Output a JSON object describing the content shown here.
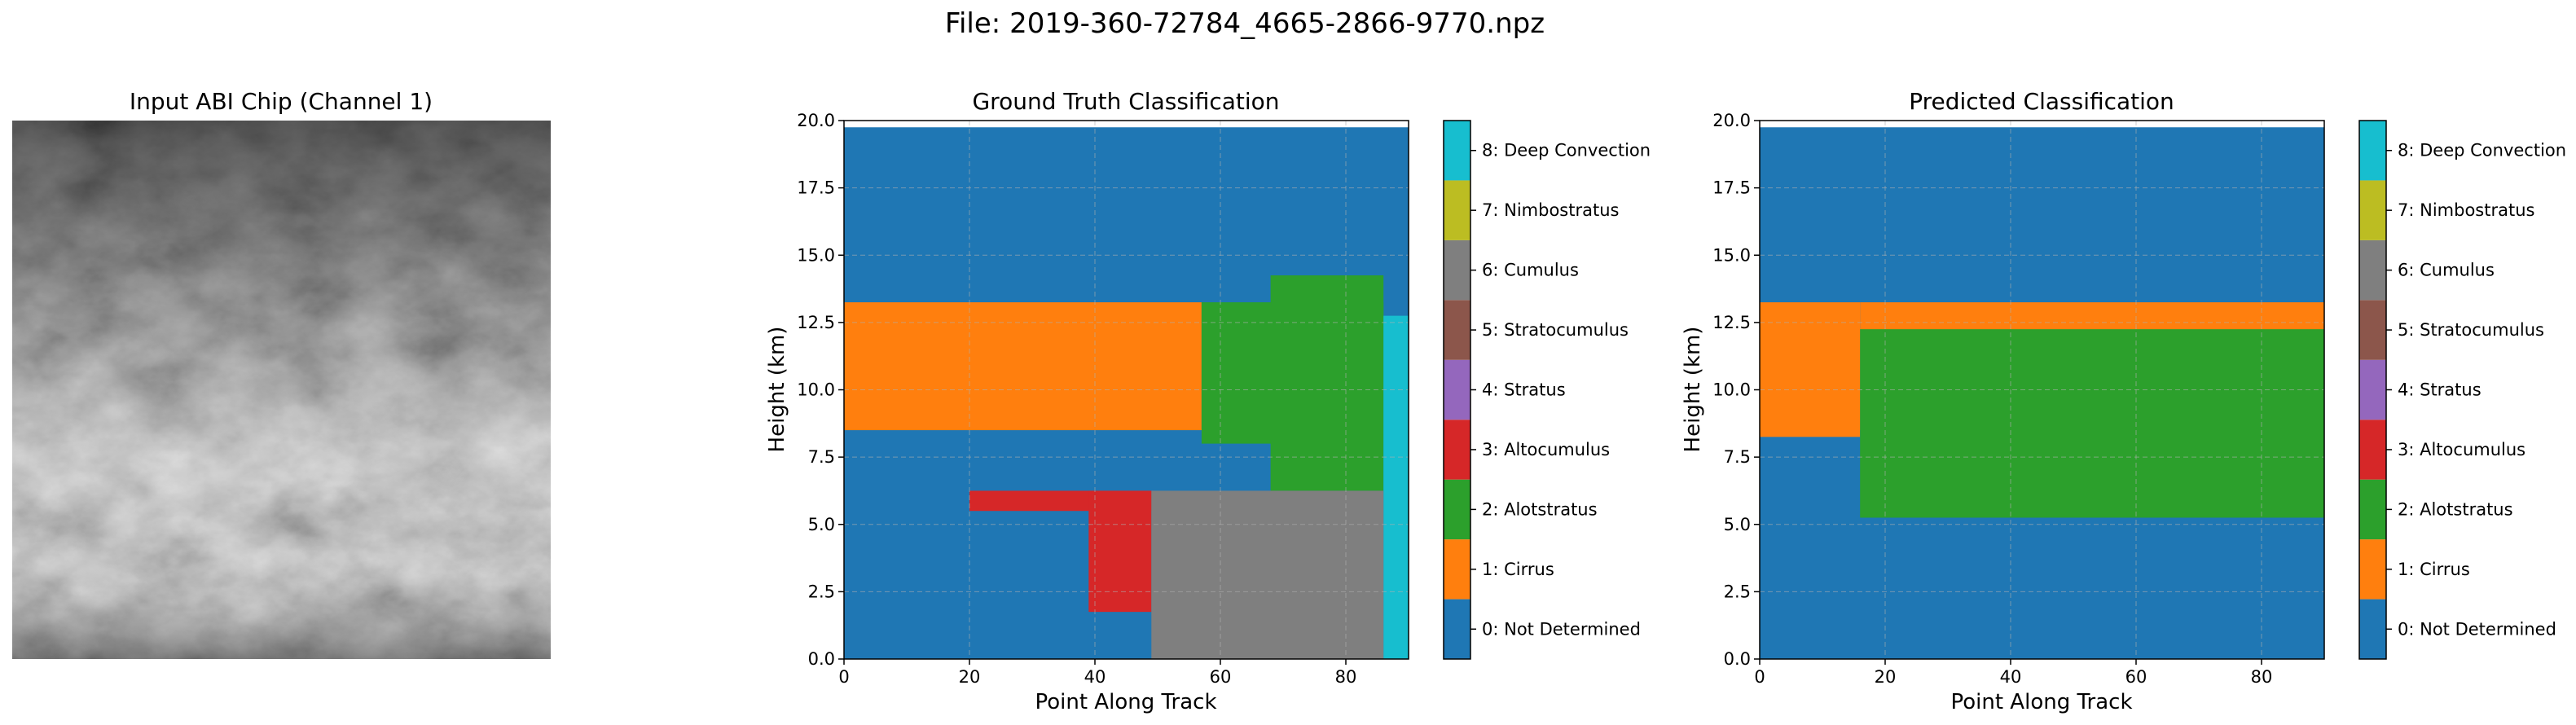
{
  "figure": {
    "title": "File: 2019-360-72784_4665-2866-9770.npz"
  },
  "chart_data": [
    {
      "type": "image",
      "title": "Input ABI Chip (Channel 1)",
      "colormap": "gray",
      "axes": "off"
    },
    {
      "type": "heatmap",
      "title": "Ground Truth Classification",
      "xlabel": "Point Along Track",
      "ylabel": "Height (km)",
      "xlim": [
        0,
        90
      ],
      "ylim": [
        0,
        20
      ],
      "xticks": [
        0,
        20,
        40,
        60,
        80
      ],
      "yticks": [
        0.0,
        2.5,
        5.0,
        7.5,
        10.0,
        12.5,
        15.0,
        17.5,
        20.0
      ],
      "grid": true,
      "bins": {
        "x_count": 90,
        "y_top": 19.75
      },
      "regions": [
        {
          "class": 1,
          "x": [
            0,
            57
          ],
          "y_bottom": 8.5,
          "y_top": 13.25
        },
        {
          "class": 2,
          "x": [
            57,
            86
          ],
          "y_bottom": 8.0,
          "y_top": 13.25
        },
        {
          "class": 2,
          "x": [
            68,
            86
          ],
          "y_bottom": 6.25,
          "y_top": 14.25
        },
        {
          "class": 8,
          "x": [
            86,
            90
          ],
          "y_bottom": 0.0,
          "y_top": 12.75
        },
        {
          "class": 3,
          "x": [
            20,
            49
          ],
          "y_bottom": 5.5,
          "y_top": 6.25
        },
        {
          "class": 3,
          "x": [
            39,
            49
          ],
          "y_bottom": 1.75,
          "y_top": 6.25
        },
        {
          "class": 6,
          "x": [
            49,
            86
          ],
          "y_bottom": 0.0,
          "y_top": 6.25
        }
      ]
    },
    {
      "type": "heatmap",
      "title": "Predicted Classification",
      "xlabel": "Point Along Track",
      "ylabel": "Height (km)",
      "xlim": [
        0,
        90
      ],
      "ylim": [
        0,
        20
      ],
      "xticks": [
        0,
        20,
        40,
        60,
        80
      ],
      "yticks": [
        0.0,
        2.5,
        5.0,
        7.5,
        10.0,
        12.5,
        15.0,
        17.5,
        20.0
      ],
      "grid": true,
      "bins": {
        "x_count": 90,
        "y_top": 19.75
      },
      "regions": [
        {
          "class": 1,
          "x": [
            0,
            16
          ],
          "y_bottom": 8.25,
          "y_top": 13.25
        },
        {
          "class": 1,
          "x": [
            16,
            90
          ],
          "y_bottom": 8.5,
          "y_top": 13.25
        },
        {
          "class": 2,
          "x": [
            16,
            90
          ],
          "y_bottom": 5.25,
          "y_top": 12.25
        }
      ]
    }
  ],
  "colorbar": {
    "classes": [
      {
        "value": 0,
        "label": "0: Not Determined",
        "color": "#1f77b4"
      },
      {
        "value": 1,
        "label": "1: Cirrus",
        "color": "#ff7f0e"
      },
      {
        "value": 2,
        "label": "2: Alotstratus",
        "color": "#2ca02c"
      },
      {
        "value": 3,
        "label": "3: Altocumulus",
        "color": "#d62728"
      },
      {
        "value": 4,
        "label": "4: Stratus",
        "color": "#9467bd"
      },
      {
        "value": 5,
        "label": "5: Stratocumulus",
        "color": "#8c564b"
      },
      {
        "value": 6,
        "label": "6: Cumulus",
        "color": "#7f7f7f"
      },
      {
        "value": 7,
        "label": "7: Nimbostratus",
        "color": "#bcbd22"
      },
      {
        "value": 8,
        "label": "8: Deep Convection",
        "color": "#17becf"
      }
    ]
  }
}
